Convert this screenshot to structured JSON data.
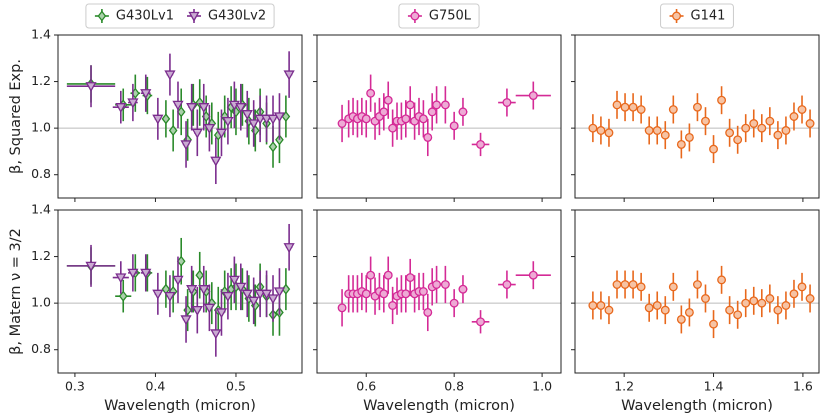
{
  "chart_data": [
    {
      "type": "errorbar",
      "ylabel": "β, Squared Exp.",
      "xlim": [
        0.279,
        0.582
      ],
      "ylim": [
        0.7,
        1.4
      ],
      "xticks": [
        0.3,
        0.4,
        0.5
      ],
      "yticks": [
        0.8,
        {
          "value": 1,
          "label": "1.0"
        },
        1.2,
        1.4
      ],
      "show_xtick_labels": false,
      "show_ytick_labels": true,
      "reference_line": 1,
      "legend": "above",
      "series": [
        {
          "name": "G430Lv1",
          "color": "#2a8a2a",
          "marker": "diamond",
          "x": [
            0.32,
            0.36,
            0.375,
            0.39,
            0.413,
            0.422,
            0.432,
            0.44,
            0.447,
            0.455,
            0.463,
            0.47,
            0.478,
            0.486,
            0.494,
            0.5,
            0.508,
            0.516,
            0.524,
            0.53,
            0.538,
            0.546,
            0.554,
            0.562
          ],
          "values": [
            1.19,
            1.1,
            1.15,
            1.14,
            1.04,
            0.99,
            1.07,
            0.95,
            1.1,
            1.11,
            1.05,
            1.02,
            0.97,
            1.05,
            1.09,
            1.07,
            1.1,
            1.03,
            0.99,
            1.07,
            1.02,
            0.92,
            0.95,
            1.05
          ],
          "yerr": [
            0.08,
            0.07,
            0.08,
            0.08,
            0.08,
            0.09,
            0.1,
            0.09,
            0.09,
            0.1,
            0.09,
            0.09,
            0.1,
            0.09,
            0.09,
            0.1,
            0.09,
            0.1,
            0.09,
            0.1,
            0.09,
            0.09,
            0.1,
            0.09
          ],
          "xerr": [
            0.03,
            0.01,
            0.006,
            0.006,
            0.004,
            0.004,
            0.004,
            0.004,
            0.004,
            0.004,
            0.004,
            0.004,
            0.004,
            0.004,
            0.004,
            0.004,
            0.004,
            0.004,
            0.004,
            0.004,
            0.004,
            0.004,
            0.004,
            0.004
          ]
        },
        {
          "name": "G430Lv2",
          "color": "#7b2d8e",
          "marker": "triangle_down",
          "x": [
            0.32,
            0.357,
            0.372,
            0.388,
            0.403,
            0.418,
            0.428,
            0.438,
            0.445,
            0.452,
            0.46,
            0.467,
            0.475,
            0.482,
            0.49,
            0.498,
            0.506,
            0.514,
            0.522,
            0.53,
            0.538,
            0.546,
            0.554,
            0.566
          ],
          "values": [
            1.18,
            1.09,
            1.11,
            1.15,
            1.04,
            1.23,
            1.1,
            0.93,
            1.09,
            0.98,
            1.09,
            1.0,
            0.86,
            0.98,
            1.03,
            1.1,
            1.09,
            1.06,
            1.02,
            1.04,
            1.04,
            1.04,
            1.05,
            1.23
          ],
          "yerr": [
            0.09,
            0.07,
            0.08,
            0.08,
            0.09,
            0.09,
            0.1,
            0.1,
            0.1,
            0.1,
            0.1,
            0.1,
            0.1,
            0.1,
            0.1,
            0.1,
            0.1,
            0.1,
            0.1,
            0.1,
            0.1,
            0.1,
            0.1,
            0.1
          ],
          "xerr": [
            0.03,
            0.01,
            0.006,
            0.006,
            0.004,
            0.004,
            0.004,
            0.004,
            0.004,
            0.004,
            0.004,
            0.004,
            0.004,
            0.004,
            0.004,
            0.004,
            0.004,
            0.004,
            0.004,
            0.004,
            0.004,
            0.004,
            0.004,
            0.004
          ]
        }
      ]
    },
    {
      "type": "errorbar",
      "xlim": [
        0.488,
        1.043
      ],
      "ylim": [
        0.7,
        1.4
      ],
      "xticks": [
        0.6,
        0.8,
        {
          "value": 1,
          "label": "1.0"
        }
      ],
      "yticks": [
        0.8,
        1,
        1.2,
        1.4
      ],
      "show_xtick_labels": false,
      "show_ytick_labels": false,
      "reference_line": 1,
      "legend": "above",
      "series": [
        {
          "name": "G750L",
          "color": "#d42a96",
          "marker": "circle",
          "x": [
            0.545,
            0.56,
            0.57,
            0.58,
            0.59,
            0.6,
            0.61,
            0.62,
            0.63,
            0.64,
            0.65,
            0.66,
            0.67,
            0.68,
            0.69,
            0.7,
            0.71,
            0.72,
            0.73,
            0.74,
            0.75,
            0.76,
            0.78,
            0.8,
            0.82,
            0.86,
            0.92,
            0.98
          ],
          "values": [
            1.02,
            1.04,
            1.05,
            1.04,
            1.05,
            1.04,
            1.15,
            1.03,
            1.05,
            1.07,
            1.12,
            1.0,
            1.03,
            1.03,
            1.04,
            1.1,
            1.03,
            1.05,
            1.04,
            0.96,
            1.07,
            1.1,
            1.1,
            1.01,
            1.07,
            0.93,
            1.11,
            1.14
          ],
          "yerr": [
            0.08,
            0.08,
            0.08,
            0.08,
            0.08,
            0.08,
            0.08,
            0.08,
            0.08,
            0.08,
            0.08,
            0.08,
            0.08,
            0.08,
            0.08,
            0.08,
            0.08,
            0.08,
            0.08,
            0.08,
            0.08,
            0.08,
            0.08,
            0.06,
            0.06,
            0.05,
            0.06,
            0.06
          ],
          "xerr": [
            0.005,
            0.005,
            0.005,
            0.005,
            0.005,
            0.005,
            0.005,
            0.005,
            0.005,
            0.005,
            0.005,
            0.005,
            0.005,
            0.005,
            0.005,
            0.005,
            0.005,
            0.005,
            0.005,
            0.005,
            0.005,
            0.005,
            0.008,
            0.008,
            0.01,
            0.02,
            0.02,
            0.04
          ]
        }
      ]
    },
    {
      "type": "errorbar",
      "xlim": [
        1.09,
        1.636
      ],
      "ylim": [
        0.7,
        1.4
      ],
      "xticks": [
        1.2,
        1.4,
        1.6
      ],
      "yticks": [
        0.8,
        1,
        1.2,
        1.4
      ],
      "show_xtick_labels": false,
      "show_ytick_labels": false,
      "reference_line": 1,
      "legend": "above",
      "series": [
        {
          "name": "G141",
          "color": "#e8681c",
          "marker": "circle",
          "x": [
            1.13,
            1.148,
            1.166,
            1.184,
            1.202,
            1.22,
            1.238,
            1.256,
            1.274,
            1.292,
            1.31,
            1.328,
            1.346,
            1.364,
            1.382,
            1.4,
            1.418,
            1.436,
            1.454,
            1.472,
            1.49,
            1.508,
            1.526,
            1.544,
            1.562,
            1.58,
            1.598,
            1.616
          ],
          "values": [
            1.0,
            0.99,
            0.98,
            1.1,
            1.09,
            1.09,
            1.08,
            0.99,
            0.99,
            0.97,
            1.08,
            0.93,
            0.96,
            1.09,
            1.03,
            0.91,
            1.12,
            0.98,
            0.95,
            1.0,
            1.02,
            1.0,
            1.03,
            0.97,
            0.99,
            1.05,
            1.08,
            1.02
          ],
          "yerr": [
            0.06,
            0.06,
            0.06,
            0.06,
            0.06,
            0.06,
            0.06,
            0.06,
            0.06,
            0.06,
            0.06,
            0.06,
            0.06,
            0.06,
            0.06,
            0.06,
            0.06,
            0.06,
            0.06,
            0.06,
            0.06,
            0.06,
            0.06,
            0.06,
            0.06,
            0.06,
            0.06,
            0.06
          ],
          "xerr": [
            0,
            0,
            0,
            0,
            0,
            0,
            0,
            0,
            0,
            0,
            0,
            0,
            0,
            0,
            0,
            0,
            0,
            0,
            0,
            0,
            0,
            0,
            0,
            0,
            0,
            0,
            0,
            0
          ]
        }
      ]
    },
    {
      "type": "errorbar",
      "ylabel": "β, Matern ν = 3/2",
      "xlabel": "Wavelength (micron)",
      "xlim": [
        0.279,
        0.582
      ],
      "ylim": [
        0.7,
        1.4
      ],
      "xticks": [
        0.3,
        0.4,
        0.5
      ],
      "yticks": [
        0.8,
        {
          "value": 1,
          "label": "1.0"
        },
        1.2,
        1.4
      ],
      "show_xtick_labels": true,
      "show_ytick_labels": true,
      "reference_line": 1,
      "series": [
        {
          "color": "#2a8a2a",
          "marker": "diamond",
          "x": [
            0.32,
            0.36,
            0.375,
            0.39,
            0.413,
            0.422,
            0.432,
            0.44,
            0.447,
            0.455,
            0.463,
            0.47,
            0.478,
            0.486,
            0.494,
            0.5,
            0.508,
            0.516,
            0.524,
            0.53,
            0.538,
            0.546,
            0.554,
            0.562
          ],
          "values": [
            1.16,
            1.03,
            1.13,
            1.13,
            1.06,
            1.05,
            1.18,
            0.97,
            1.05,
            1.12,
            1.05,
            1.0,
            0.97,
            1.05,
            1.06,
            1.07,
            1.06,
            1.02,
            0.99,
            1.07,
            1.03,
            0.95,
            0.96,
            1.06
          ],
          "yerr": [
            0.08,
            0.07,
            0.08,
            0.08,
            0.08,
            0.09,
            0.1,
            0.09,
            0.09,
            0.1,
            0.09,
            0.09,
            0.1,
            0.09,
            0.09,
            0.1,
            0.09,
            0.1,
            0.09,
            0.1,
            0.09,
            0.09,
            0.1,
            0.09
          ],
          "xerr": [
            0.03,
            0.01,
            0.006,
            0.006,
            0.004,
            0.004,
            0.004,
            0.004,
            0.004,
            0.004,
            0.004,
            0.004,
            0.004,
            0.004,
            0.004,
            0.004,
            0.004,
            0.004,
            0.004,
            0.004,
            0.004,
            0.004,
            0.004,
            0.004
          ]
        },
        {
          "color": "#7b2d8e",
          "marker": "triangle_down",
          "x": [
            0.32,
            0.357,
            0.372,
            0.388,
            0.403,
            0.418,
            0.428,
            0.438,
            0.445,
            0.452,
            0.46,
            0.467,
            0.475,
            0.482,
            0.49,
            0.498,
            0.506,
            0.514,
            0.522,
            0.53,
            0.538,
            0.546,
            0.554,
            0.566
          ],
          "values": [
            1.16,
            1.11,
            1.13,
            1.13,
            1.04,
            1.03,
            1.1,
            0.93,
            1.06,
            0.97,
            1.06,
            0.98,
            0.87,
            0.96,
            1.03,
            1.1,
            1.07,
            1.04,
            1.01,
            1.04,
            1.04,
            1.02,
            1.05,
            1.24
          ],
          "yerr": [
            0.09,
            0.07,
            0.08,
            0.08,
            0.09,
            0.09,
            0.1,
            0.1,
            0.1,
            0.1,
            0.1,
            0.1,
            0.1,
            0.1,
            0.1,
            0.1,
            0.1,
            0.1,
            0.1,
            0.1,
            0.1,
            0.1,
            0.1,
            0.1
          ],
          "xerr": [
            0.03,
            0.01,
            0.006,
            0.006,
            0.004,
            0.004,
            0.004,
            0.004,
            0.004,
            0.004,
            0.004,
            0.004,
            0.004,
            0.004,
            0.004,
            0.004,
            0.004,
            0.004,
            0.004,
            0.004,
            0.004,
            0.004,
            0.004,
            0.004
          ]
        }
      ]
    },
    {
      "type": "errorbar",
      "xlabel": "Wavelength (micron)",
      "xlim": [
        0.488,
        1.043
      ],
      "ylim": [
        0.7,
        1.4
      ],
      "xticks": [
        0.6,
        0.8,
        {
          "value": 1,
          "label": "1.0"
        }
      ],
      "yticks": [
        0.8,
        1,
        1.2,
        1.4
      ],
      "show_xtick_labels": true,
      "show_ytick_labels": false,
      "reference_line": 1,
      "series": [
        {
          "color": "#d42a96",
          "marker": "circle",
          "x": [
            0.545,
            0.56,
            0.57,
            0.58,
            0.59,
            0.6,
            0.61,
            0.62,
            0.63,
            0.64,
            0.65,
            0.66,
            0.67,
            0.68,
            0.69,
            0.7,
            0.71,
            0.72,
            0.73,
            0.74,
            0.75,
            0.76,
            0.78,
            0.8,
            0.82,
            0.86,
            0.92,
            0.98
          ],
          "values": [
            0.98,
            1.04,
            1.04,
            1.04,
            1.05,
            1.04,
            1.12,
            1.03,
            1.05,
            1.04,
            1.12,
            0.99,
            1.03,
            1.04,
            1.04,
            1.11,
            1.04,
            1.05,
            1.05,
            0.96,
            1.07,
            1.08,
            1.08,
            1.0,
            1.06,
            0.92,
            1.08,
            1.12
          ],
          "yerr": [
            0.08,
            0.08,
            0.08,
            0.08,
            0.08,
            0.08,
            0.08,
            0.08,
            0.08,
            0.08,
            0.08,
            0.08,
            0.08,
            0.08,
            0.08,
            0.08,
            0.08,
            0.08,
            0.08,
            0.08,
            0.08,
            0.08,
            0.08,
            0.06,
            0.06,
            0.05,
            0.06,
            0.06
          ],
          "xerr": [
            0.005,
            0.005,
            0.005,
            0.005,
            0.005,
            0.005,
            0.005,
            0.005,
            0.005,
            0.005,
            0.005,
            0.005,
            0.005,
            0.005,
            0.005,
            0.005,
            0.005,
            0.005,
            0.005,
            0.005,
            0.005,
            0.005,
            0.008,
            0.008,
            0.01,
            0.02,
            0.02,
            0.04
          ]
        }
      ]
    },
    {
      "type": "errorbar",
      "xlabel": "Wavelength (micron)",
      "xlim": [
        1.09,
        1.636
      ],
      "ylim": [
        0.7,
        1.4
      ],
      "xticks": [
        1.2,
        1.4,
        1.6
      ],
      "yticks": [
        0.8,
        1,
        1.2,
        1.4
      ],
      "show_xtick_labels": true,
      "show_ytick_labels": false,
      "reference_line": 1,
      "series": [
        {
          "color": "#e8681c",
          "marker": "circle",
          "x": [
            1.13,
            1.148,
            1.166,
            1.184,
            1.202,
            1.22,
            1.238,
            1.256,
            1.274,
            1.292,
            1.31,
            1.328,
            1.346,
            1.364,
            1.382,
            1.4,
            1.418,
            1.436,
            1.454,
            1.472,
            1.49,
            1.508,
            1.526,
            1.544,
            1.562,
            1.58,
            1.598,
            1.616
          ],
          "values": [
            0.99,
            0.99,
            0.97,
            1.08,
            1.08,
            1.08,
            1.07,
            0.98,
            0.99,
            0.97,
            1.07,
            0.93,
            0.96,
            1.08,
            1.02,
            0.91,
            1.1,
            0.97,
            0.95,
            1.0,
            1.01,
            1.0,
            1.02,
            0.97,
            0.99,
            1.04,
            1.07,
            1.02
          ],
          "yerr": [
            0.06,
            0.06,
            0.06,
            0.06,
            0.06,
            0.06,
            0.06,
            0.06,
            0.06,
            0.06,
            0.06,
            0.06,
            0.06,
            0.06,
            0.06,
            0.06,
            0.06,
            0.06,
            0.06,
            0.06,
            0.06,
            0.06,
            0.06,
            0.06,
            0.06,
            0.06,
            0.06,
            0.06
          ],
          "xerr": [
            0,
            0,
            0,
            0,
            0,
            0,
            0,
            0,
            0,
            0,
            0,
            0,
            0,
            0,
            0,
            0,
            0,
            0,
            0,
            0,
            0,
            0,
            0,
            0,
            0,
            0,
            0,
            0
          ]
        }
      ]
    }
  ]
}
